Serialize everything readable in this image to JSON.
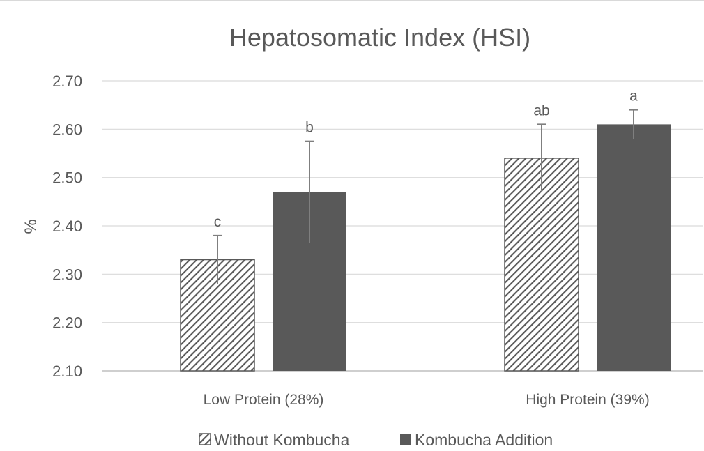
{
  "chart_data": {
    "type": "bar",
    "title": "Hepatosomatic Index (HSI)",
    "ylabel": "%",
    "xlabel": "",
    "categories": [
      "Low Protein (28%)",
      "High Protein (39%)"
    ],
    "ylim": [
      2.1,
      2.7
    ],
    "yticks": [
      "2.10",
      "2.20",
      "2.30",
      "2.40",
      "2.50",
      "2.60",
      "2.70"
    ],
    "grid": true,
    "legend_position": "bottom",
    "series": [
      {
        "name": "Without Kombucha",
        "pattern": "diagonal-hatch",
        "color": "#595959",
        "values": [
          2.33,
          2.54
        ],
        "error": [
          0.05,
          0.07
        ],
        "labels": [
          "c",
          "ab"
        ]
      },
      {
        "name": "Kombucha Addition",
        "pattern": "solid",
        "color": "#595959",
        "values": [
          2.47,
          2.61
        ],
        "error": [
          0.105,
          0.03
        ],
        "labels": [
          "b",
          "a"
        ]
      }
    ]
  }
}
